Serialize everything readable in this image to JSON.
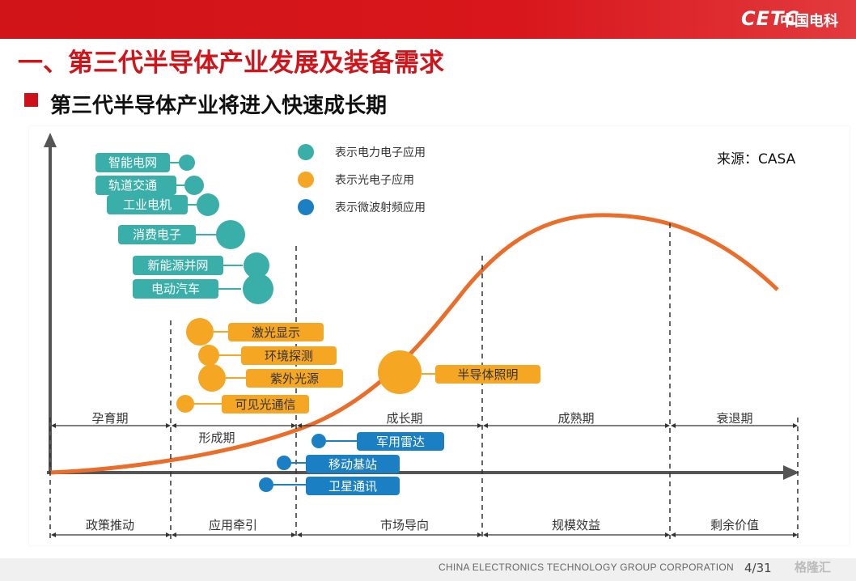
{
  "header": {
    "logo_text": "CETC",
    "logo_cn": "中国电科"
  },
  "title": "一、第三代半导体产业发展及装备需求",
  "subtitle": "第三代半导体产业将进入快速成长期",
  "source": "来源：CASA",
  "legend": [
    {
      "label": "表示电力电子应用",
      "color": "#3aafa9"
    },
    {
      "label": "表示光电子应用",
      "color": "#f5a623"
    },
    {
      "label": "表示微波射频应用",
      "color": "#1b7fc4"
    }
  ],
  "stages": [
    "孕育期",
    "形成期",
    "成长期",
    "成熟期",
    "衰退期"
  ],
  "drivers": [
    "政策推动",
    "应用牵引",
    "市场导向",
    "规模效益",
    "剩余价值"
  ],
  "power_apps": [
    "智能电网",
    "轨道交通",
    "工业电机",
    "消费电子",
    "新能源并网",
    "电动汽车"
  ],
  "opto_apps": [
    "激光显示",
    "环境探测",
    "紫外光源",
    "可见光通信",
    "半导体照明"
  ],
  "rf_apps": [
    "军用雷达",
    "移动基站",
    "卫星通讯"
  ],
  "footer": {
    "org": "CHINA ELECTRONICS TECHNOLOGY GROUP CORPORATION",
    "page": "4/31",
    "watermark": "格隆汇"
  }
}
